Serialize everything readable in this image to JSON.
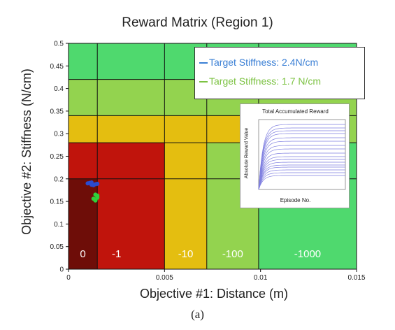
{
  "chart_data": {
    "type": "heatmap",
    "title": "Reward Matrix (Region 1)",
    "xlabel": "Objective #1: Distance (m)",
    "ylabel": "Objective #2: Stiffness (N/cm)",
    "caption": "(a)",
    "xlim": [
      0,
      0.015
    ],
    "ylim": [
      0,
      0.5
    ],
    "x_ticks": [
      0,
      0.005,
      0.01,
      0.015
    ],
    "x_tick_labels": [
      "0",
      "0.005",
      "0.01",
      "0.015"
    ],
    "y_ticks": [
      0,
      0.05,
      0.1,
      0.15,
      0.2,
      0.25,
      0.3,
      0.35,
      0.4,
      0.45,
      0.5
    ],
    "y_tick_labels": [
      "0",
      "0.05",
      "0.1",
      "0.15",
      "0.2",
      "0.25",
      "0.3",
      "0.35",
      "0.4",
      "0.45",
      "0.5"
    ],
    "regions": [
      {
        "x": [
          0,
          0.015
        ],
        "y": [
          0.42,
          0.5
        ],
        "color": "#4fd96e",
        "label": ""
      },
      {
        "x": [
          0,
          0.015
        ],
        "y": [
          0.34,
          0.42
        ],
        "color": "#93d34f",
        "label": ""
      },
      {
        "x": [
          0,
          0.015
        ],
        "y": [
          0.28,
          0.34
        ],
        "color": "#e4be10",
        "label": ""
      },
      {
        "x": [
          0.0099,
          0.015
        ],
        "y": [
          0.28,
          0.34
        ],
        "color": "#93d34f",
        "label": ""
      },
      {
        "x": [
          0.0099,
          0.015
        ],
        "y": [
          0,
          0.28
        ],
        "color": "#4fd96e",
        "label": "-1000"
      },
      {
        "x": [
          0.0072,
          0.0099
        ],
        "y": [
          0,
          0.28
        ],
        "color": "#93d34f",
        "label": "-100"
      },
      {
        "x": [
          0.005,
          0.0072
        ],
        "y": [
          0,
          0.28
        ],
        "color": "#e4be10",
        "label": "-10"
      },
      {
        "x": [
          0,
          0.005
        ],
        "y": [
          0,
          0.28
        ],
        "color": "#c0140c",
        "label": "-1"
      },
      {
        "x": [
          0,
          0.0015
        ],
        "y": [
          0,
          0.2
        ],
        "color": "#6e0d08",
        "label": "0"
      }
    ],
    "grid_x": [
      0.0015,
      0.005,
      0.0072,
      0.0099
    ],
    "grid_y": [
      0.2,
      0.28,
      0.34,
      0.42
    ],
    "series": [
      {
        "name": "Target Stiffness: 2.4N/cm",
        "color": "#2a4bd0",
        "points": [
          [
            0.001,
            0.19
          ],
          [
            0.0012,
            0.192
          ],
          [
            0.0014,
            0.188
          ],
          [
            0.0013,
            0.186
          ],
          [
            0.0011,
            0.191
          ],
          [
            0.0015,
            0.189
          ],
          [
            0.0012,
            0.187
          ]
        ]
      },
      {
        "name": "Target Stiffness: 1.7 N/cm",
        "color": "#2fd13a",
        "points": [
          [
            0.0014,
            0.165
          ],
          [
            0.0015,
            0.158
          ],
          [
            0.0014,
            0.152
          ],
          [
            0.0015,
            0.16
          ],
          [
            0.0013,
            0.156
          ],
          [
            0.0015,
            0.163
          ]
        ]
      }
    ],
    "legend_position": "top-right",
    "legend_colors": [
      "#3a7fd5",
      "#7cc242"
    ],
    "inset": {
      "type": "line",
      "title": "Total Accumulated Reward",
      "xlabel": "Episode No.",
      "ylabel": "Absolute Reward Value",
      "xlim": [
        0,
        100
      ],
      "ylim": [
        0,
        1
      ],
      "line_color": "#7f7fe0",
      "plateaus": [
        0.93,
        0.88,
        0.84,
        0.8,
        0.74,
        0.69,
        0.63,
        0.58,
        0.52,
        0.47,
        0.43,
        0.39,
        0.35,
        0.32,
        0.28,
        0.24,
        0.2
      ]
    }
  }
}
